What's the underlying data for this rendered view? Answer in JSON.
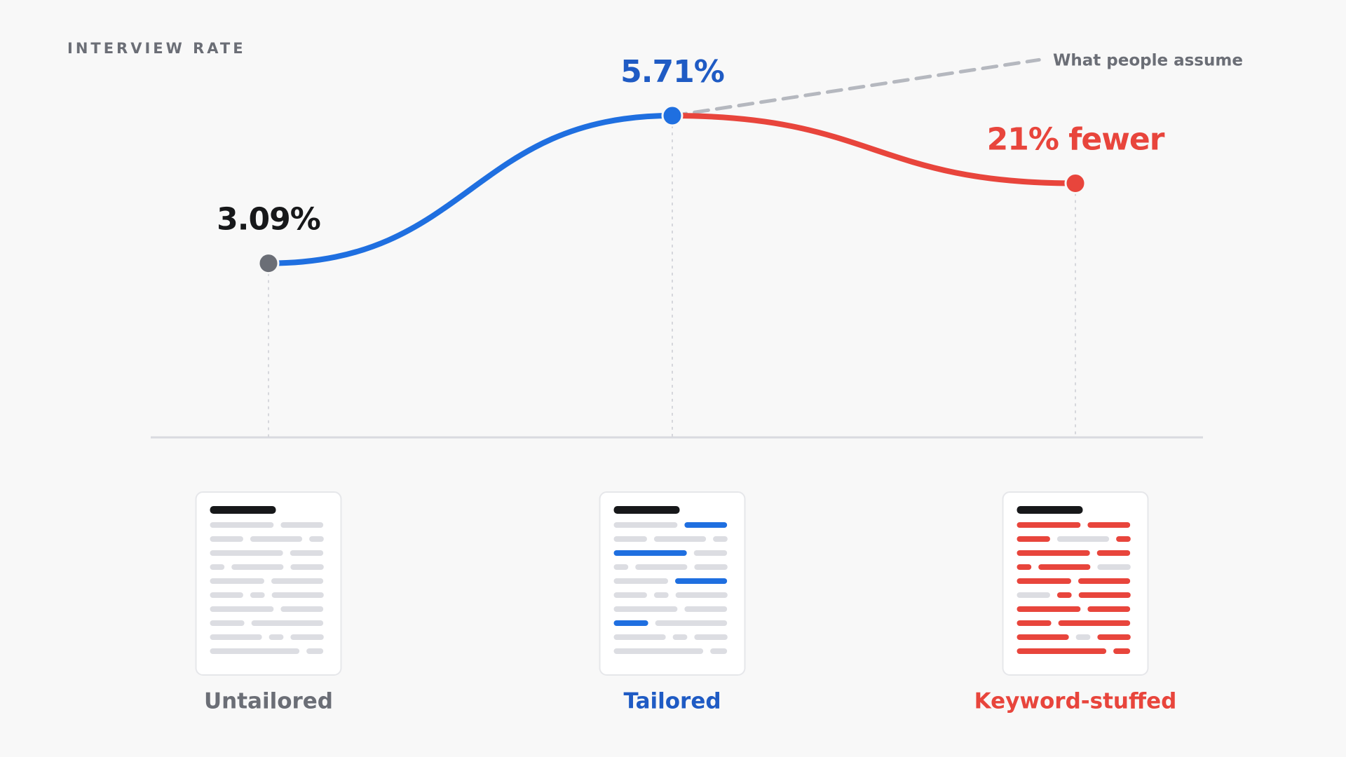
{
  "chart_data": {
    "type": "line",
    "title": "INTERVIEW RATE",
    "categories": [
      "Untailored",
      "Tailored",
      "Keyword-stuffed"
    ],
    "values": [
      3.09,
      5.71,
      4.51
    ],
    "value_labels": [
      "3.09%",
      "5.71%",
      null
    ],
    "annotation": "21% fewer",
    "point_colors": [
      "#6b6e76",
      "#1f6fe0",
      "#e8453c"
    ],
    "segment_colors": [
      "#1f6fe0",
      "#e8453c"
    ],
    "label_colors": [
      "#17181a",
      "#1f5bc4",
      "#e8453c"
    ],
    "category_colors": [
      "#6b6e76",
      "#1f5bc4",
      "#e8453c"
    ],
    "assumption": {
      "label": "What people assume",
      "values": [
        null,
        5.71,
        6.8
      ],
      "color": "#b5b8bf"
    },
    "ylim": [
      0,
      8
    ]
  }
}
